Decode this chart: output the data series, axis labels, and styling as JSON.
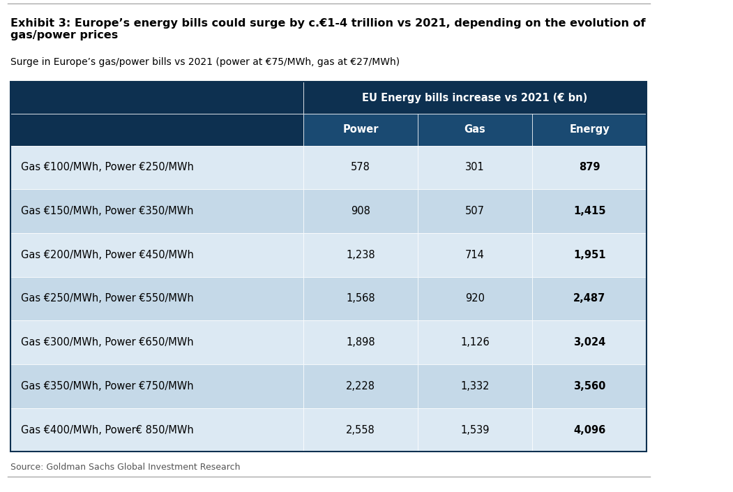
{
  "title_bold": "Exhibit 3: Europe’s energy bills could surge by c.€1-4 trillion vs 2021, depending on the evolution of\ngas/power prices",
  "subtitle": "Surge in Europe’s gas/power bills vs 2021 (power at €75/MWh, gas at €27/MWh)",
  "source": "Source: Goldman Sachs Global Investment Research",
  "header_main": "EU Energy bills increase vs 2021 (€ bn)",
  "col_headers": [
    "Power",
    "Gas",
    "Energy"
  ],
  "rows": [
    {
      "label": "Gas €100/MWh, Power €250/MWh",
      "power": "578",
      "gas": "301",
      "energy": "879"
    },
    {
      "label": "Gas €150/MWh, Power €350/MWh",
      "power": "908",
      "gas": "507",
      "energy": "1,415"
    },
    {
      "label": "Gas €200/MWh, Power €450/MWh",
      "power": "1,238",
      "gas": "714",
      "energy": "1,951"
    },
    {
      "label": "Gas €250/MWh, Power €550/MWh",
      "power": "1,568",
      "gas": "920",
      "energy": "2,487"
    },
    {
      "label": "Gas €300/MWh, Power €650/MWh",
      "power": "1,898",
      "gas": "1,126",
      "energy": "3,024"
    },
    {
      "label": "Gas €350/MWh, Power €750/MWh",
      "power": "2,228",
      "gas": "1,332",
      "energy": "3,560"
    },
    {
      "label": "Gas €400/MWh, Power€ 850/MWh",
      "power": "2,558",
      "gas": "1,539",
      "energy": "4,096"
    }
  ],
  "color_header_dark": "#0d3050",
  "color_header_medium": "#1a4a72",
  "color_row_light": "#c5d9e8",
  "color_row_white": "#dce9f3",
  "color_bg": "#ffffff",
  "border_color": "#0d3050",
  "title_fontsize": 11.5,
  "subtitle_fontsize": 10,
  "header_fontsize": 10.5,
  "cell_fontsize": 10.5,
  "source_fontsize": 9
}
